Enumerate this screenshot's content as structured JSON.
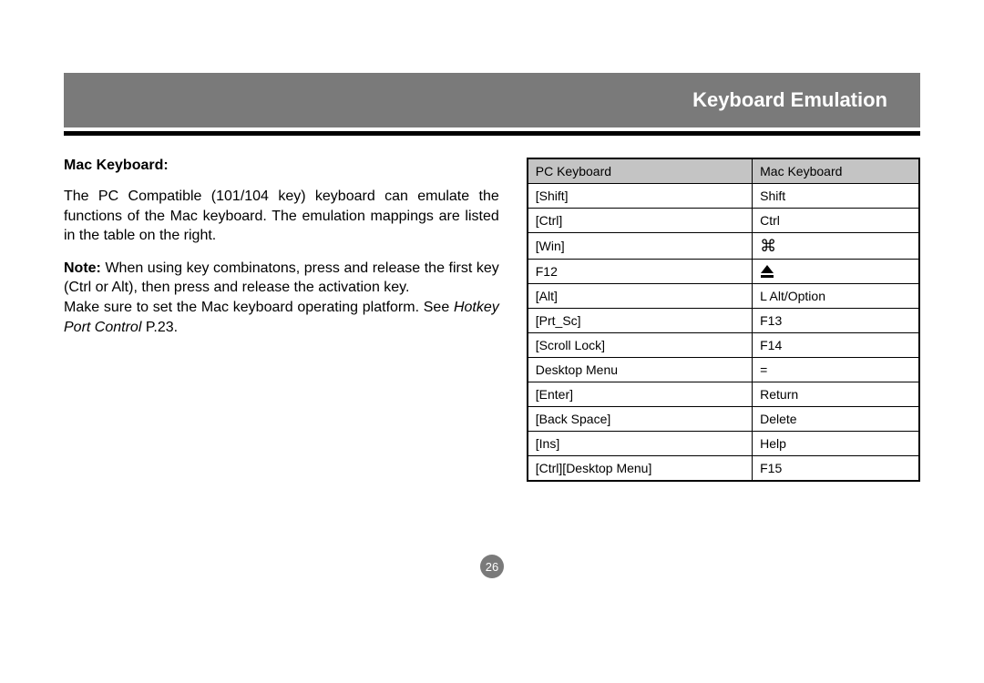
{
  "header": {
    "title": "Keyboard Emulation"
  },
  "left": {
    "heading": "Mac Keyboard:",
    "para1": "The PC Compatible (101/104 key) keyboard can emulate the functions of the Mac keyboard. The emulation mappings are listed in the table on the right.",
    "note_label": "Note:",
    "note_text": " When using key combinatons, press and release the first key (Ctrl or Alt), then press and release the activation key.",
    "para2a": "Make sure to set the Mac keyboard operating platform. See ",
    "para2_italic": "Hotkey Port Control",
    "para2b": " P.23."
  },
  "table": {
    "col1": "PC Keyboard",
    "col2": "Mac Keyboard",
    "rows": [
      {
        "pc": "[Shift]",
        "mac": "Shift",
        "mac_icon": null
      },
      {
        "pc": "[Ctrl]",
        "mac": "Ctrl",
        "mac_icon": null
      },
      {
        "pc": "[Win]",
        "mac": "",
        "mac_icon": "command"
      },
      {
        "pc": "F12",
        "mac": "",
        "mac_icon": "eject"
      },
      {
        "pc": "[Alt]",
        "mac": "L Alt/Option",
        "mac_icon": null
      },
      {
        "pc": "[Prt_Sc]",
        "mac": "F13",
        "mac_icon": null
      },
      {
        "pc": "[Scroll Lock]",
        "mac": "F14",
        "mac_icon": null
      },
      {
        "pc": "Desktop Menu",
        "mac": "=",
        "mac_icon": null
      },
      {
        "pc": "[Enter]",
        "mac": "Return",
        "mac_icon": null
      },
      {
        "pc": "[Back Space]",
        "mac": "Delete",
        "mac_icon": null
      },
      {
        "pc": "[Ins]",
        "mac": "Help",
        "mac_icon": null
      },
      {
        "pc": "[Ctrl][Desktop Menu]",
        "mac": "F15",
        "mac_icon": null
      }
    ]
  },
  "page_number": "26",
  "colors": {
    "header_bg": "#7a7a7a",
    "table_header_bg": "#c4c4c4",
    "border": "#000000",
    "text": "#000000"
  }
}
